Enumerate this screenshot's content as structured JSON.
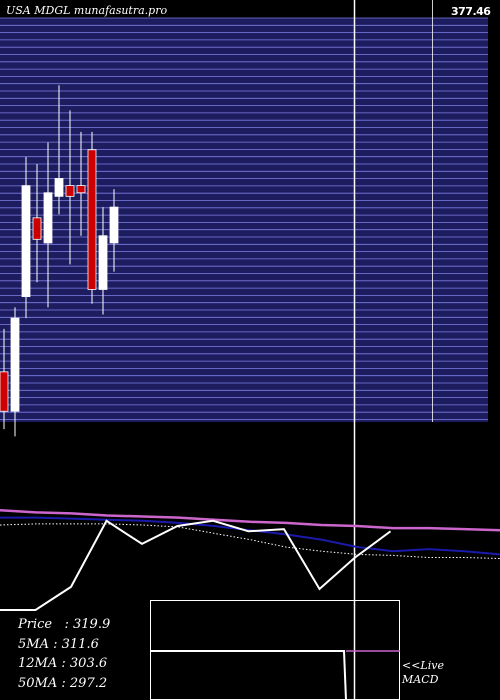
{
  "chart_data": {
    "type": "candlestick",
    "title": "USA MDGL munafasutra.pro",
    "last_price_label": "377.46",
    "price_axis": {
      "min": 268,
      "max": 378
    },
    "candles": [
      {
        "open": 282,
        "high": 294,
        "low": 266,
        "close": 271
      },
      {
        "open": 271,
        "high": 300,
        "low": 264,
        "close": 297
      },
      {
        "open": 303,
        "high": 342,
        "low": 297,
        "close": 334
      },
      {
        "open": 325,
        "high": 340,
        "low": 307,
        "close": 319
      },
      {
        "open": 318,
        "high": 346,
        "low": 300,
        "close": 332
      },
      {
        "open": 331,
        "high": 362,
        "low": 326,
        "close": 336
      },
      {
        "open": 334,
        "high": 355,
        "low": 312,
        "close": 331
      },
      {
        "open": 334,
        "high": 349,
        "low": 320,
        "close": 332
      },
      {
        "open": 344,
        "high": 349,
        "low": 301,
        "close": 305
      },
      {
        "open": 305,
        "high": 328,
        "low": 298,
        "close": 320
      },
      {
        "open": 318,
        "high": 333,
        "low": 310,
        "close": 328
      }
    ],
    "indicators": {
      "stochastic": [
        0.0,
        0.0,
        0.22,
        0.85,
        0.63,
        0.8,
        0.85,
        0.75,
        0.77,
        0.2,
        0.5,
        0.75
      ],
      "ma_pink": [
        0.95,
        0.93,
        0.92,
        0.9,
        0.89,
        0.88,
        0.86,
        0.84,
        0.83,
        0.81,
        0.8,
        0.78,
        0.78,
        0.77,
        0.76
      ],
      "ma_blue": [
        0.88,
        0.88,
        0.87,
        0.86,
        0.85,
        0.83,
        0.8,
        0.76,
        0.72,
        0.67,
        0.6,
        0.56,
        0.58,
        0.56,
        0.53
      ],
      "ma_dotted": [
        0.81,
        0.82,
        0.82,
        0.82,
        0.81,
        0.79,
        0.73,
        0.67,
        0.6,
        0.56,
        0.53,
        0.52,
        0.5,
        0.5,
        0.49
      ]
    },
    "stats": [
      {
        "label": "Price",
        "value": "319.9"
      },
      {
        "label": "5MA",
        "value": "311.6"
      },
      {
        "label": "12MA",
        "value": "303.6"
      },
      {
        "label": "50MA",
        "value": "297.2"
      }
    ],
    "macd_label_line1": "<<Live",
    "macd_label_line2": "MACD",
    "colors": {
      "background": "#000000",
      "grid_band": "#1c1c5e",
      "grid_line": "#9090ff",
      "bull": "#ffffff",
      "bear": "#cc0000",
      "pink": "#cc66cc",
      "blue": "#1a1aaa",
      "text": "#ffffff"
    }
  }
}
